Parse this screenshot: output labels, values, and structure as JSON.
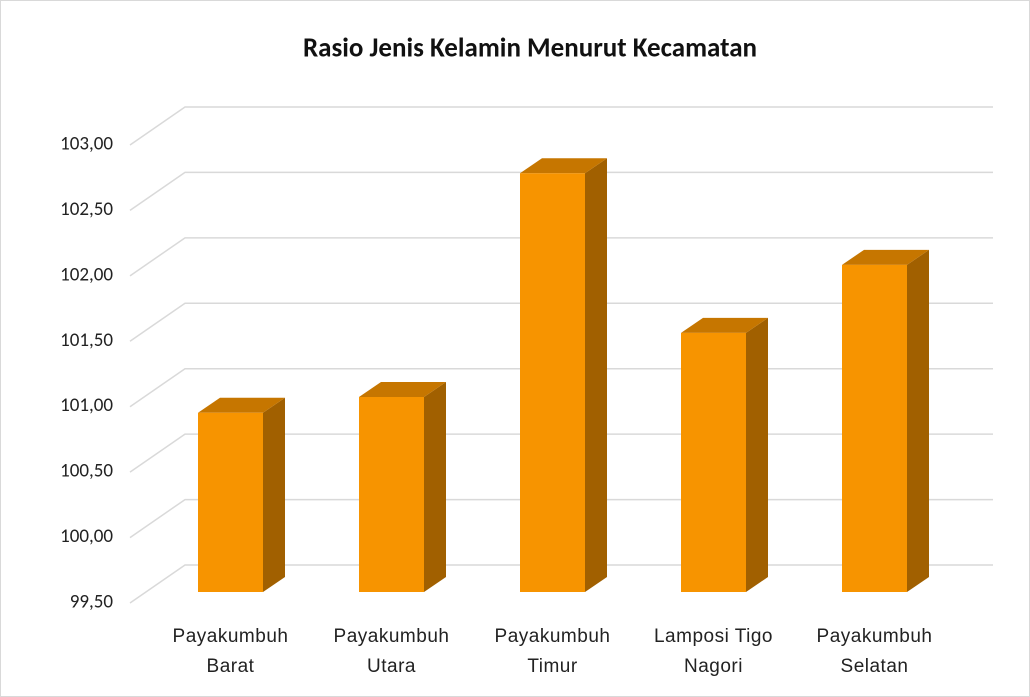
{
  "chart_data": {
    "type": "bar",
    "title": "Rasio Jenis Kelamin Menurut Kecamatan",
    "categories": [
      "Payakumbuh Barat",
      "Payakumbuh Utara",
      "Payakumbuh Timur",
      "Lamposi Tigo Nagori",
      "Payakumbuh Selatan"
    ],
    "values": [
      100.87,
      100.99,
      102.7,
      101.48,
      102.0
    ],
    "color": "#f79400",
    "ylim": [
      99.5,
      103.0
    ],
    "yticks": [
      {
        "value": 99.5,
        "label": "99,50"
      },
      {
        "value": 100.0,
        "label": "100,00"
      },
      {
        "value": 100.5,
        "label": "100,50"
      },
      {
        "value": 101.0,
        "label": "101,00"
      },
      {
        "value": 101.5,
        "label": "101,50"
      },
      {
        "value": 102.0,
        "label": "102,00"
      },
      {
        "value": 102.5,
        "label": "102,50"
      },
      {
        "value": 103.0,
        "label": "103,00"
      }
    ],
    "grid": true
  }
}
